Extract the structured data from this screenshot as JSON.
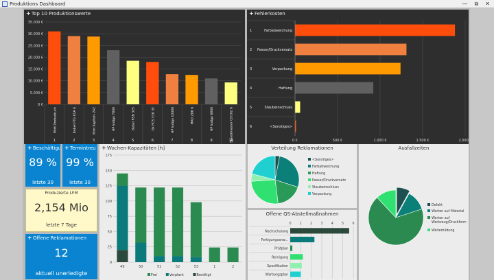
{
  "window": {
    "title": "Produktions Dashboard",
    "controls": [
      "—",
      "⧉",
      "✕"
    ]
  },
  "top10": {
    "title": "Top 10 Produktionswerte",
    "y_ticks": [
      "35.000 €",
      "30.000 €",
      "25.000 €",
      "20.000 €",
      "15.000 €",
      "10.000 €",
      "5.000 €",
      "0 €"
    ],
    "bars": [
      {
        "name": "Wirtl Probedruck",
        "num": "1",
        "value": 31000,
        "color": "#ff4e0c"
      },
      {
        "name": "Bebel FTG K1A 6",
        "num": "2",
        "value": 29000,
        "color": "#f08040"
      },
      {
        "name": "Klim Kapitels 242",
        "num": "3",
        "value": 28800,
        "color": "#ff9a00"
      },
      {
        "name": "HP Indigo 7800",
        "num": "4",
        "value": 23000,
        "color": "#606060"
      },
      {
        "name": "Bebel RSB 325",
        "num": "5",
        "value": 18500,
        "color": "#ffff80"
      },
      {
        "name": "Gk RCS 53B 3E",
        "num": "6",
        "value": 18000,
        "color": "#ff4e0c"
      },
      {
        "name": "HP Indigo 10000",
        "num": "7",
        "value": 12800,
        "color": "#f08040"
      },
      {
        "name": "MAG Z88 6",
        "num": "8",
        "value": 12500,
        "color": "#ff9a00"
      },
      {
        "name": "HP Indigo 6800",
        "num": "9",
        "value": 11000,
        "color": "#606060"
      },
      {
        "name": "Speedmaster CD102 6",
        "num": "10",
        "value": 9300,
        "color": "#ffff80"
      }
    ]
  },
  "fehler": {
    "title": "Fehlerkosten",
    "x_ticks": [
      "0 €",
      "500 €",
      "1.000 €",
      "1.500 €",
      "2.000 €"
    ],
    "rows": [
      {
        "num": "1",
        "name": "Farbabweichung",
        "value": 1880,
        "color": "#ff4e0c"
      },
      {
        "num": "2",
        "name": "Passer/Druckversatz",
        "value": 1310,
        "color": "#f08040"
      },
      {
        "num": "3",
        "name": "Verpackung",
        "value": 1240,
        "color": "#ff9a00"
      },
      {
        "num": "4",
        "name": "Haftung",
        "value": 920,
        "color": "#606060"
      },
      {
        "num": "5",
        "name": "Staubeinschluss",
        "value": 60,
        "color": "#ffff80"
      },
      {
        "num": "6",
        "name": "<Sonstiges>",
        "value": 12,
        "color": "#ff4e0c"
      }
    ]
  },
  "kpi": {
    "besch": {
      "title": "Beschäftigu",
      "value": "89 %",
      "sub": "letzte 30"
    },
    "termin": {
      "title": "Termintreu",
      "value": "99 %",
      "sub": "letzte 30"
    },
    "lfm": {
      "title": "Produzierte LFM",
      "value": "2,154 Mio",
      "sub": "letzte 7 Tage"
    },
    "rekl": {
      "title": "Offene Reklamationen",
      "value": "12",
      "sub": "aktuell unerledigte"
    }
  },
  "wochen": {
    "title": "Wochen-Kapazitäten [h]",
    "y_ticks": [
      "175",
      "150",
      "125",
      "100",
      "75",
      "50",
      "25",
      "0"
    ],
    "legend": [
      {
        "label": "Frei",
        "color": "#2a8a50"
      },
      {
        "label": "Verplant",
        "color": "#0a7a7a"
      },
      {
        "label": "Benötigt",
        "color": "#2c4a3c"
      }
    ],
    "weeks": [
      {
        "label": "49",
        "frei": 20,
        "verplant": 105,
        "benoetigt": 20
      },
      {
        "label": "50",
        "frei": 90,
        "verplant": 32,
        "benoetigt": 0
      },
      {
        "label": "51",
        "frei": 112,
        "verplant": 10,
        "benoetigt": 0
      },
      {
        "label": "52",
        "frei": 112,
        "verplant": 10,
        "benoetigt": 0
      },
      {
        "label": "53",
        "frei": 90,
        "verplant": 8,
        "benoetigt": 0
      },
      {
        "label": "1",
        "frei": 24,
        "verplant": 0,
        "benoetigt": 0
      },
      {
        "label": "2",
        "frei": 24,
        "verplant": 0,
        "benoetigt": 0
      }
    ]
  },
  "verteilung": {
    "title": "Verteilung Reklamationen",
    "slices": [
      {
        "label": "<Sonstiges>",
        "value": 3,
        "color": "#1e5050"
      },
      {
        "label": "Farbabweichung",
        "value": 27,
        "color": "#0a8078"
      },
      {
        "label": "Haftung",
        "value": 18,
        "color": "#2a9a58"
      },
      {
        "label": "Passer/Druckversatz",
        "value": 26,
        "color": "#30e070"
      },
      {
        "label": "Staubeinschluss",
        "value": 5,
        "color": "#90f0b0"
      },
      {
        "label": "Verpackung",
        "value": 21,
        "color": "#20d0d0"
      }
    ]
  },
  "qs": {
    "title": "Offene QS-Abstellmaßnahmen",
    "x_ticks": [
      "0",
      "1",
      "2",
      "3",
      "4",
      "5",
      "6"
    ],
    "rows": [
      {
        "name": "Nachschulung",
        "value": 5.6,
        "color": "#2c4a3c"
      },
      {
        "name": "Fertigungsanw...",
        "value": 2.3,
        "color": "#0a7a7a"
      },
      {
        "name": "Prüfplan",
        "value": 0.2,
        "color": "#2a8a50"
      },
      {
        "name": "Reinigung",
        "value": 1.2,
        "color": "#30e070"
      },
      {
        "name": "Spezifikation",
        "value": 1.1,
        "color": "#90f0b0"
      },
      {
        "name": "Wartungsplan",
        "value": 1.0,
        "color": "#20d0d0"
      }
    ]
  },
  "ausfall": {
    "title": "Ausfallzeiten",
    "slices": [
      {
        "label": "Defekt",
        "value": 8,
        "color": "#1e5050"
      },
      {
        "label": "Warten auf Material",
        "value": 12,
        "color": "#0a8078"
      },
      {
        "label": "Warten auf Werkzeug/Druckform",
        "value": 68,
        "color": "#2a8a50"
      },
      {
        "label": "Weiterbildung",
        "value": 12,
        "color": "#30e070"
      }
    ]
  }
}
